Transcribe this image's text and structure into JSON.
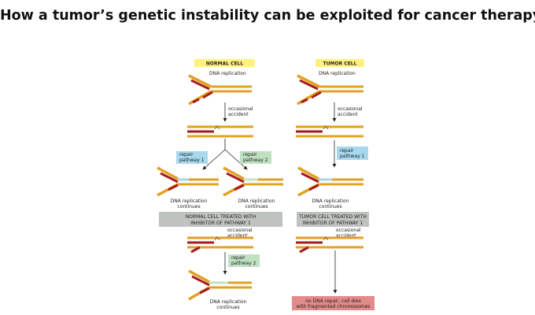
{
  "title": "How a tumor’s genetic instability can be exploited for cancer therapy",
  "colors": {
    "dna_strand": "#e3a022",
    "new_strand": "#a31c1c",
    "repair_patch": "#a9d6ea",
    "repair_patch_2": "#c3e2c6",
    "header_yellow": "#fff27a",
    "pathway1_box": "#a7d8ee",
    "pathway2_box": "#bfe0c1",
    "treated_box": "#bfc3bf",
    "death_box": "#e38a8a"
  },
  "normal_cell": {
    "header": "NORMAL CELL",
    "replication": "DNA replication",
    "accident": [
      "occasional",
      "accident"
    ],
    "pathway1": [
      "repair",
      "pathway 1"
    ],
    "pathway2": [
      "repair",
      "pathway 2"
    ],
    "continues_left": [
      "DNA replication",
      "continues"
    ],
    "continues_right": [
      "DNA replication",
      "continues"
    ]
  },
  "normal_treated": {
    "header": [
      "NORMAL CELL TREATED WITH",
      "INHIBITOR OF PATHWAY 1"
    ],
    "accident": [
      "occasional",
      "accident"
    ],
    "pathway2": [
      "repair",
      "pathway 2"
    ],
    "continues": [
      "DNA replication",
      "continues"
    ]
  },
  "tumor_cell": {
    "header": "TUMOR CELL",
    "replication": "DNA replication",
    "accident": [
      "occasional",
      "accident"
    ],
    "pathway1": [
      "repair",
      "pathway 1"
    ],
    "continues": [
      "DNA replication",
      "continues"
    ]
  },
  "tumor_treated": {
    "header": [
      "TUMOR CELL TREATED WITH",
      "INHIBITOR OF PATHWAY 1"
    ],
    "accident": [
      "occasional",
      "accident"
    ],
    "outcome": [
      "no DNA repair, cell dies",
      "with fragmented chromosomes"
    ]
  }
}
